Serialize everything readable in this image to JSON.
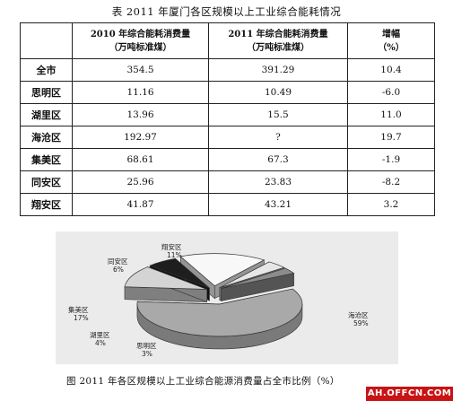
{
  "table_title": "表 2011 年厦门各区规模以上工业综合能耗情况",
  "table": {
    "headers": [
      {
        "line1": "",
        "line2": ""
      },
      {
        "line1": "2010 年综合能耗消费量",
        "line2": "（万吨标准煤）"
      },
      {
        "line1": "2011 年综合能耗消费量",
        "line2": "（万吨标准煤）"
      },
      {
        "line1": "增幅",
        "line2": "（%）"
      }
    ],
    "rows": [
      {
        "region": "全市",
        "y2010": "354.5",
        "y2011": "391.29",
        "growth": "10.4"
      },
      {
        "region": "思明区",
        "y2010": "11.16",
        "y2011": "10.49",
        "growth": "-6.0"
      },
      {
        "region": "湖里区",
        "y2010": "13.96",
        "y2011": "15.5",
        "growth": "11.0"
      },
      {
        "region": "海沧区",
        "y2010": "192.97",
        "y2011": "?",
        "growth": "19.7"
      },
      {
        "region": "集美区",
        "y2010": "68.61",
        "y2011": "67.3",
        "growth": "-1.9"
      },
      {
        "region": "同安区",
        "y2010": "25.96",
        "y2011": "23.83",
        "growth": "-8.2"
      },
      {
        "region": "翔安区",
        "y2010": "41.87",
        "y2011": "43.21",
        "growth": "3.2"
      }
    ]
  },
  "chart_data": {
    "type": "pie",
    "title": "",
    "slices": [
      {
        "label": "海沧区",
        "value": 59,
        "value_text": "59%",
        "color": "#a9a9a9"
      },
      {
        "label": "翔安区",
        "value": 11,
        "value_text": "11%",
        "color": "#d4d4d4"
      },
      {
        "label": "同安区",
        "value": 6,
        "value_text": "6%",
        "color": "#1e1e1e"
      },
      {
        "label": "集美区",
        "value": 17,
        "value_text": "17%",
        "color": "#f8f8f8"
      },
      {
        "label": "湖里区",
        "value": 4,
        "value_text": "4%",
        "color": "#e6e6e6"
      },
      {
        "label": "思明区",
        "value": 3,
        "value_text": "3%",
        "color": "#8c8c8c"
      }
    ]
  },
  "figure_caption": "图 2011 年各区规模以上工业综合能源消费量占全市比例（%）",
  "watermark": "AH.OFFCN.COM"
}
